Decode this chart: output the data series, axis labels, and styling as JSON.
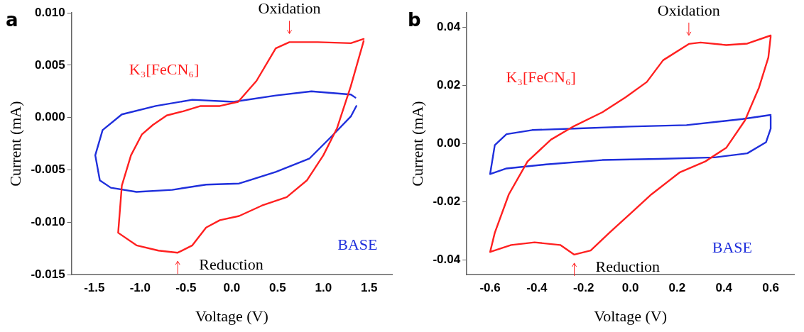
{
  "chart_data": [
    {
      "type": "line",
      "title": "a",
      "xlabel": "Voltage (V)",
      "ylabel": "Current (mA)",
      "xlim": [
        -1.75,
        1.75
      ],
      "ylim": [
        -0.015,
        0.01
      ],
      "xticks": [
        -1.5,
        {
          "value": -1,
          "label": "-1.0"
        },
        -0.5,
        {
          "value": 0,
          "label": "0.0"
        },
        0.5,
        {
          "value": 1,
          "label": "1.0"
        },
        1.5
      ],
      "yticks": [
        {
          "value": -0.015,
          "label": "-0.015"
        },
        {
          "value": -0.01,
          "label": "-0.010"
        },
        {
          "value": -0.005,
          "label": "-0.005"
        },
        {
          "value": 0,
          "label": "0.000"
        },
        {
          "value": 0.005,
          "label": "0.005"
        },
        {
          "value": 0.01,
          "label": "0.010"
        }
      ],
      "marker": "none",
      "line_style": "solid",
      "series": [
        {
          "name": "K₃[FeCN₆]",
          "color": "#ff2020",
          "x": [
            1.44,
            1.3,
            0.94,
            0.63,
            0.48,
            0.27,
            0.07,
            -0.13,
            -0.34,
            -0.53,
            -0.71,
            -0.86,
            -0.98,
            -1.1,
            -1.2,
            -1.24,
            -1.04,
            -0.8,
            -0.59,
            -0.43,
            -0.28,
            -0.13,
            0.08,
            0.33,
            0.6,
            0.82,
            1,
            1.15,
            1.3,
            1.44
          ],
          "values": [
            0.0075,
            0.0071,
            0.0072,
            0.0072,
            0.0066,
            0.0035,
            0.0015,
            0.0011,
            0.0011,
            0.0006,
            0.0002,
            -0.0007,
            -0.0016,
            -0.0036,
            -0.0065,
            -0.011,
            -0.0122,
            -0.0127,
            -0.0129,
            -0.0122,
            -0.0105,
            -0.0098,
            -0.0094,
            -0.0084,
            -0.0076,
            -0.006,
            -0.0036,
            -0.001,
            0.003,
            0.0073
          ]
        },
        {
          "name": "BASE",
          "color": "#1f2fdc",
          "x": [
            1.35,
            1.3,
            0.87,
            0.48,
            0.02,
            -0.43,
            -0.83,
            -1.2,
            -1.41,
            -1.49,
            -1.44,
            -1.32,
            -1.04,
            -0.65,
            -0.28,
            0.08,
            0.48,
            0.85,
            1.09,
            1.3,
            1.36
          ],
          "values": [
            0.0019,
            0.0022,
            0.0025,
            0.0021,
            0.0015,
            0.0017,
            0.0011,
            0.0003,
            -0.0012,
            -0.0036,
            -0.006,
            -0.0067,
            -0.0071,
            -0.0069,
            -0.0064,
            -0.0063,
            -0.0052,
            -0.0039,
            -0.0018,
            0.0001,
            0.0011
          ]
        }
      ],
      "annotations": [
        {
          "text": "Oxidation",
          "x": 0.63,
          "y": 0.0072
        },
        {
          "text": "Reduction",
          "x": -0.59,
          "y": -0.0129
        }
      ]
    },
    {
      "type": "line",
      "title": "b",
      "xlabel": "Voltage (V)",
      "ylabel": "Current (mA)",
      "xlim": [
        -0.7,
        0.7
      ],
      "ylim": [
        -0.045,
        0.045
      ],
      "xticks": [
        -0.6,
        -0.4,
        -0.2,
        {
          "value": 0,
          "label": "0.0"
        },
        0.2,
        0.4,
        0.6
      ],
      "yticks": [
        -0.04,
        -0.02,
        {
          "value": 0,
          "label": "0.00"
        },
        0.02,
        0.04
      ],
      "marker": "none",
      "line_style": "solid",
      "series": [
        {
          "name": "K₃[FeCN₆]",
          "color": "#ff2020",
          "x": [
            0.6,
            0.5,
            0.41,
            0.3,
            0.25,
            0.14,
            0.07,
            -0.02,
            -0.12,
            -0.24,
            -0.34,
            -0.44,
            -0.52,
            -0.58,
            -0.6,
            -0.51,
            -0.41,
            -0.3,
            -0.24,
            -0.17,
            -0.09,
            0,
            0.09,
            0.21,
            0.32,
            0.41,
            0.49,
            0.55,
            0.59,
            0.6
          ],
          "values": [
            0.0372,
            0.0344,
            0.0339,
            0.0348,
            0.0343,
            0.0287,
            0.0212,
            0.016,
            0.0108,
            0.0061,
            0.0014,
            -0.0061,
            -0.0174,
            -0.0306,
            -0.0372,
            -0.0348,
            -0.0339,
            -0.0348,
            -0.0381,
            -0.0367,
            -0.0306,
            -0.024,
            -0.0174,
            -0.0099,
            -0.0061,
            -0.0014,
            0.008,
            0.0193,
            0.0296,
            0.0368
          ]
        },
        {
          "name": "BASE",
          "color": "#1f2fdc",
          "x": [
            0.6,
            0.48,
            0.24,
            0,
            -0.24,
            -0.42,
            -0.53,
            -0.58,
            -0.6,
            -0.53,
            -0.36,
            -0.12,
            0.12,
            0.36,
            0.5,
            0.58,
            0.6,
            0.6
          ],
          "values": [
            0.0099,
            0.0085,
            0.0064,
            0.0059,
            0.0052,
            0.0047,
            0.0033,
            -0.0005,
            -0.0104,
            -0.0085,
            -0.0071,
            -0.0056,
            -0.0052,
            -0.0047,
            -0.0033,
            0.0005,
            0.0052,
            0.0095
          ]
        }
      ],
      "annotations": [
        {
          "text": "Oxidation",
          "x": 0.25,
          "y": 0.0343
        },
        {
          "text": "Reduction",
          "x": -0.24,
          "y": -0.0381
        }
      ]
    }
  ]
}
